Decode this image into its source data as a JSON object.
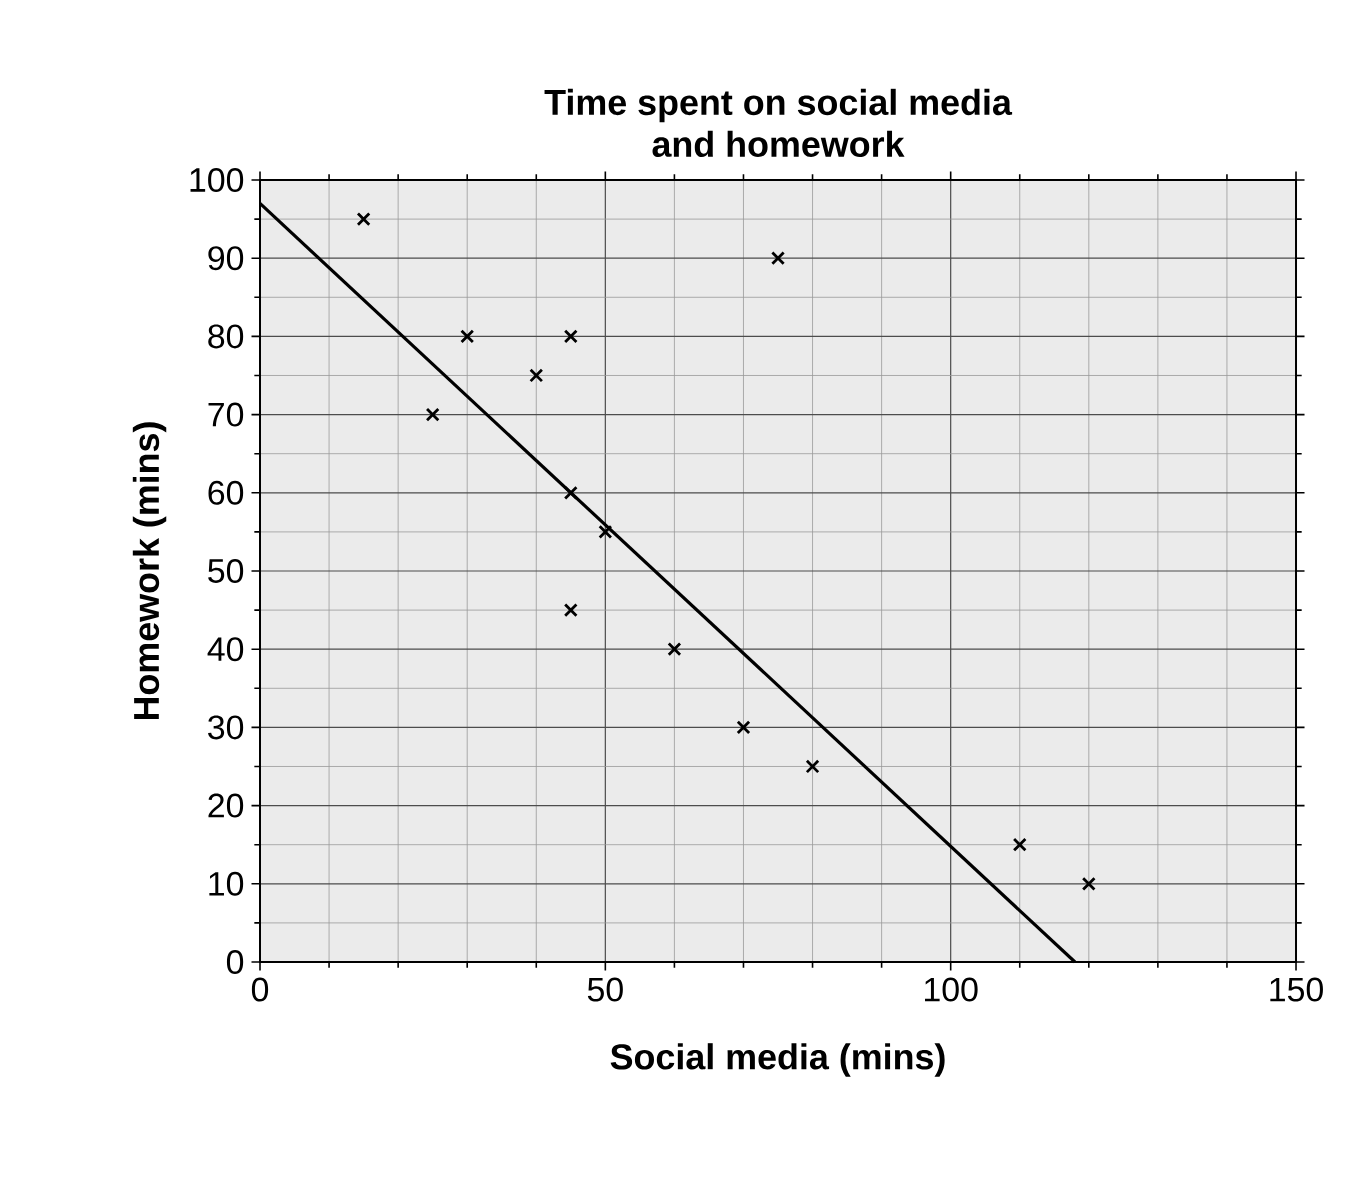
{
  "chart_data": {
    "type": "scatter",
    "title": "Time spent on social media\nand homework",
    "xlabel": "Social media (mins)",
    "ylabel": "Homework (mins)",
    "xlim": [
      0,
      150
    ],
    "xticks": [
      0,
      50,
      100,
      150
    ],
    "ylim": [
      0,
      100
    ],
    "yticks": [
      0,
      10,
      20,
      30,
      40,
      50,
      60,
      70,
      80,
      90,
      100
    ],
    "grid": true,
    "marker": "cross",
    "series": [
      {
        "color": "#000000",
        "x": [
          15,
          25,
          30,
          40,
          45,
          45,
          50,
          45,
          60,
          70,
          80,
          110,
          120,
          75
        ],
        "values": [
          95,
          70,
          80,
          75,
          80,
          60,
          55,
          45,
          40,
          30,
          25,
          15,
          10,
          90
        ]
      },
      {
        "type": "line",
        "marker": "none",
        "color": "#000000",
        "x": [
          0,
          118
        ],
        "values": [
          97,
          0
        ]
      }
    ]
  }
}
